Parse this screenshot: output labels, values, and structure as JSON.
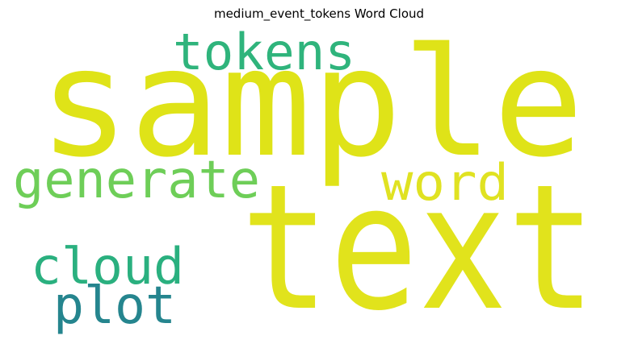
{
  "chart_data": {
    "type": "wordcloud",
    "title": "medium_event_tokens Word Cloud",
    "words": [
      {
        "text": "sample",
        "color": "#dfe318"
      },
      {
        "text": "text",
        "color": "#e1e31c"
      },
      {
        "text": "tokens",
        "color": "#2fb47c"
      },
      {
        "text": "generate",
        "color": "#6ece58"
      },
      {
        "text": "word",
        "color": "#e0e222"
      },
      {
        "text": "cloud",
        "color": "#2ab07f"
      },
      {
        "text": "plot",
        "color": "#25858e"
      }
    ]
  }
}
